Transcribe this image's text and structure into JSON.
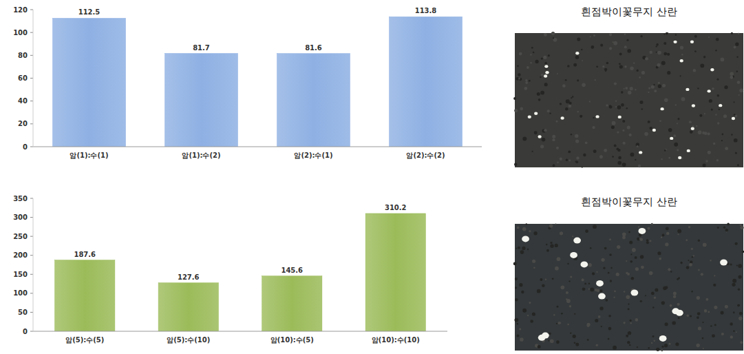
{
  "chart_data": [
    {
      "type": "bar",
      "categories": [
        "암(1):수(1)",
        "암(1):수(2)",
        "암(2):수(1)",
        "암(2):수(2)"
      ],
      "values": [
        112.5,
        81.7,
        81.6,
        113.8
      ],
      "color": "#8eb0e3",
      "ylim": [
        0,
        120
      ],
      "yticks": [
        0,
        20,
        40,
        60,
        80,
        100,
        120
      ],
      "grid": false,
      "data_labels": true
    },
    {
      "type": "bar",
      "categories": [
        "암(5):수(5)",
        "암(5):수(10)",
        "암(10):수(5)",
        "암(10):수(10)"
      ],
      "values": [
        187.6,
        127.6,
        145.6,
        310.2
      ],
      "color": "#9bbb59",
      "ylim": [
        0,
        350
      ],
      "yticks": [
        0,
        50,
        100,
        150,
        200,
        250,
        300,
        350
      ],
      "grid": false,
      "data_labels": true
    }
  ],
  "photos": [
    {
      "caption": "흰점박이꽃무지 산란"
    },
    {
      "caption": "흰점박이꽃무지 산란"
    }
  ]
}
